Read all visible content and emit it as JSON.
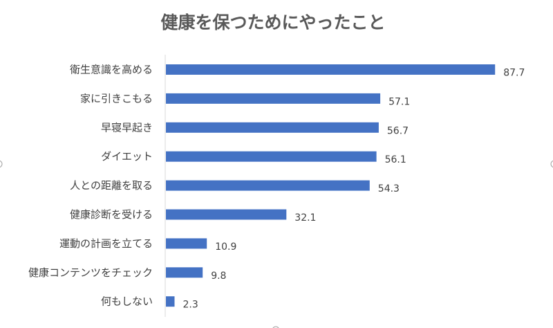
{
  "chart_data": {
    "type": "bar",
    "orientation": "horizontal",
    "title": "健康を保つためにやったこと",
    "categories": [
      "衛生意識を高める",
      "家に引きこもる",
      "早寝早起き",
      "ダイエット",
      "人との距離を取る",
      "健康診断を受ける",
      "運動の計画を立てる",
      "健康コンテンツをチェック",
      "何もしない"
    ],
    "values": [
      87.7,
      57.1,
      56.7,
      56.1,
      54.3,
      32.1,
      10.9,
      9.8,
      2.3
    ],
    "value_labels": [
      "87.7",
      "57.1",
      "56.7",
      "56.1",
      "54.3",
      "32.1",
      "10.9",
      "9.8",
      "2.3"
    ],
    "xlabel": "",
    "ylabel": "",
    "xlim": [
      0,
      100
    ],
    "grid": false,
    "legend": "none",
    "bar_color": "#4472C4",
    "axis_color": "#D9D9D9"
  }
}
